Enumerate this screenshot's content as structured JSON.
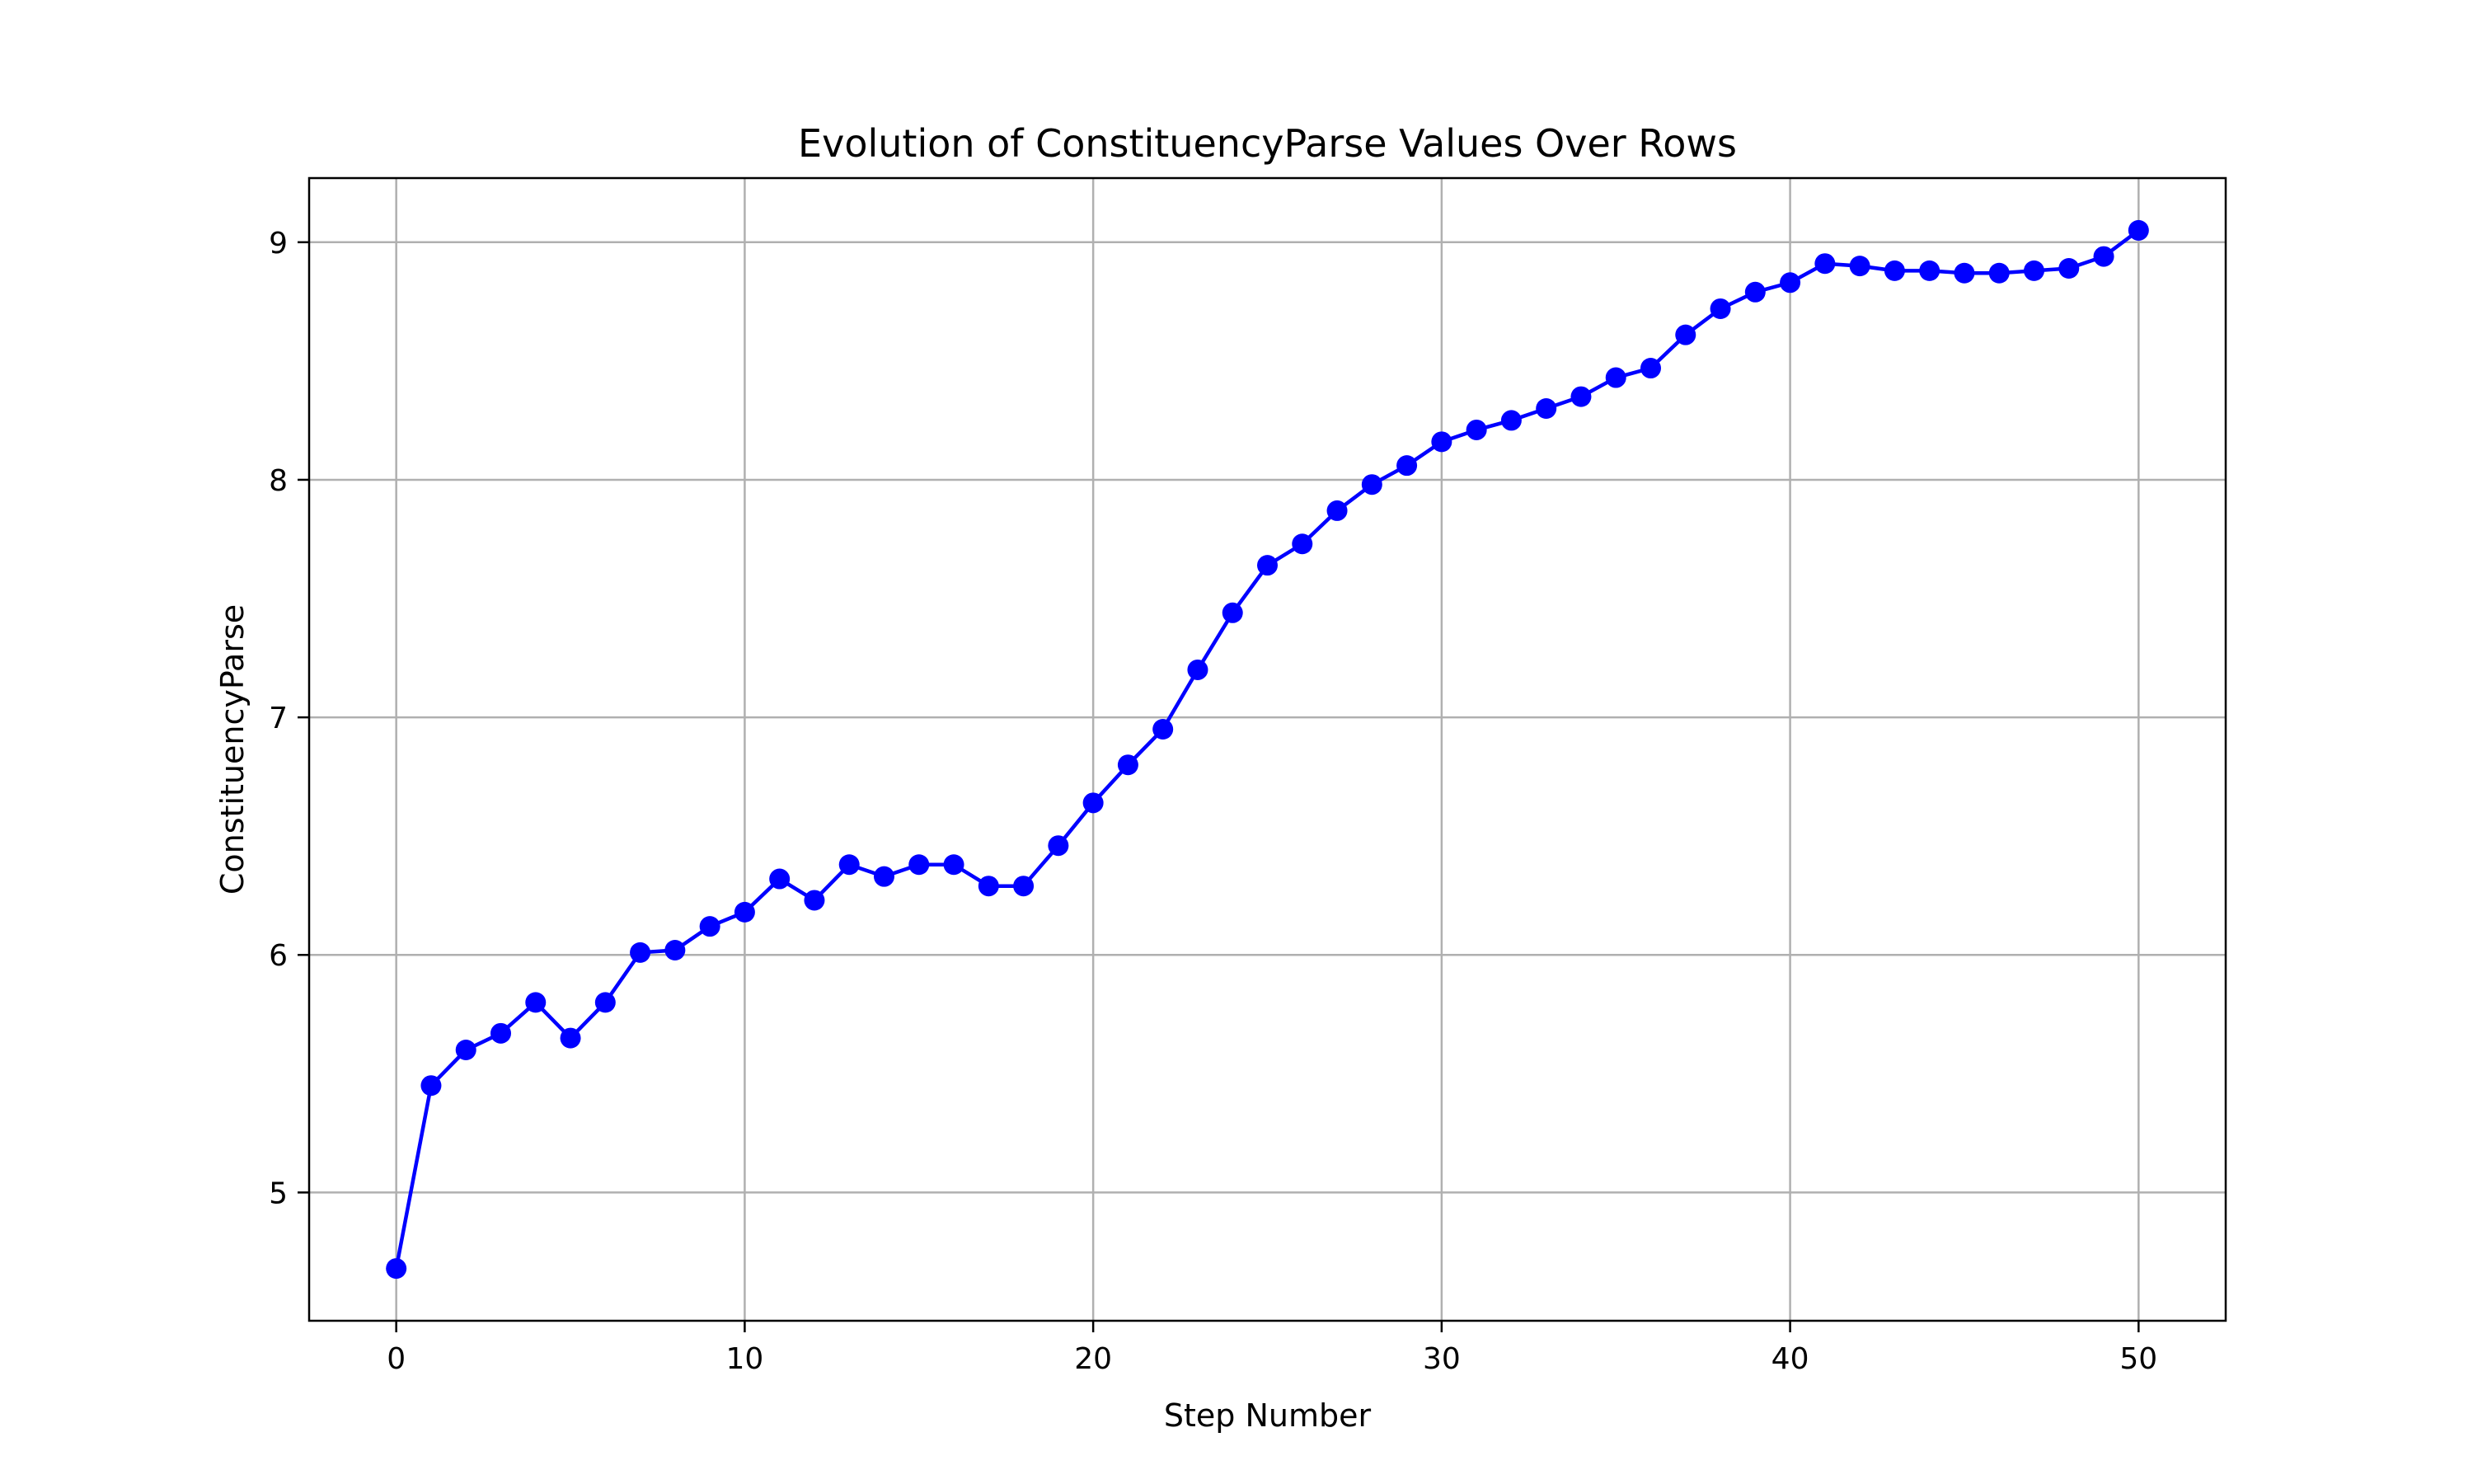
{
  "chart_data": {
    "type": "line",
    "title": "Evolution of ConstituencyParse Values Over Rows",
    "xlabel": "Step Number",
    "ylabel": "ConstituencyParse",
    "xlim": [
      -2.5,
      52.5
    ],
    "ylim": [
      4.46,
      9.27
    ],
    "xticks": [
      0,
      10,
      20,
      30,
      40,
      50
    ],
    "yticks": [
      5,
      6,
      7,
      8,
      9
    ],
    "grid": true,
    "legend": "none",
    "colors": {
      "series": "#0000ff",
      "grid": "#b0b0b0",
      "frame": "#000000"
    },
    "marker": "circle",
    "x": [
      0,
      1,
      2,
      3,
      4,
      5,
      6,
      7,
      8,
      9,
      10,
      11,
      12,
      13,
      14,
      15,
      16,
      17,
      18,
      19,
      20,
      21,
      22,
      23,
      24,
      25,
      26,
      27,
      28,
      29,
      30,
      31,
      32,
      33,
      34,
      35,
      36,
      37,
      38,
      39,
      40,
      41,
      42,
      43,
      44,
      45,
      46,
      47,
      48,
      49,
      50
    ],
    "y": [
      4.68,
      5.45,
      5.6,
      5.67,
      5.8,
      5.65,
      5.8,
      6.01,
      6.02,
      6.12,
      6.18,
      6.32,
      6.23,
      6.38,
      6.33,
      6.38,
      6.38,
      6.29,
      6.29,
      6.46,
      6.64,
      6.8,
      6.95,
      7.2,
      7.44,
      7.64,
      7.73,
      7.87,
      7.98,
      8.06,
      8.16,
      8.21,
      8.25,
      8.3,
      8.35,
      8.43,
      8.47,
      8.61,
      8.72,
      8.79,
      8.83,
      8.91,
      8.9,
      8.88,
      8.88,
      8.87,
      8.87,
      8.88,
      8.89,
      8.94,
      9.05
    ]
  }
}
